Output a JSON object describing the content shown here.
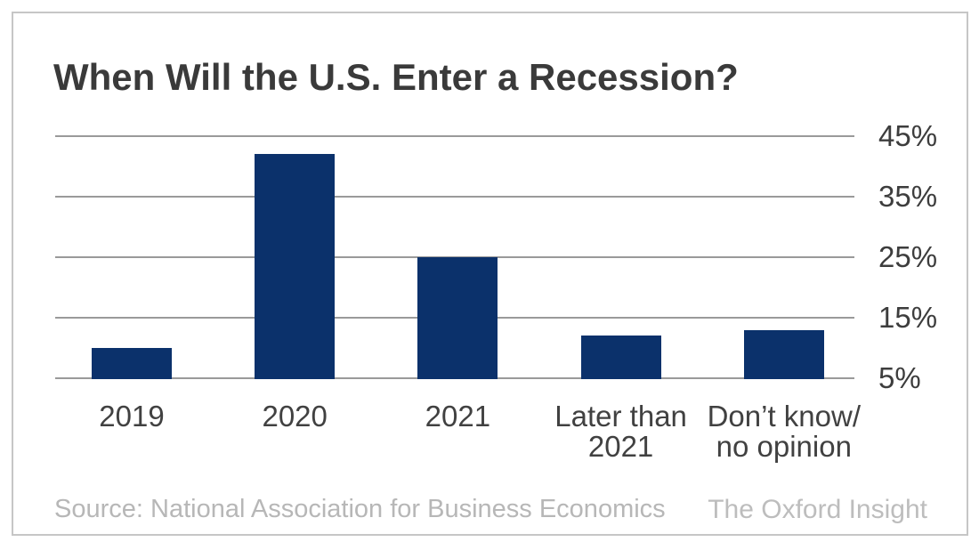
{
  "frame": {
    "border_color": "#c6c6c6",
    "background": "#ffffff"
  },
  "chart_data": {
    "type": "bar",
    "title": "When Will the U.S. Enter a Recession?",
    "categories": [
      "2019",
      "2020",
      "2021",
      "Later than\n2021",
      "Don’t know/\nno opinion"
    ],
    "values": [
      10,
      42,
      25,
      12,
      13
    ],
    "unit": "%",
    "xlabel": "",
    "ylabel": "",
    "y_tick_labels": [
      "45%",
      "35%",
      "25%",
      "15%",
      "5%"
    ],
    "y_ticks": [
      45,
      35,
      25,
      15,
      5
    ],
    "baseline_value": 5,
    "ylim": [
      5,
      47
    ],
    "grid": true,
    "tick_side": "right",
    "legend": "none",
    "bar_color": "#0b316b",
    "gridline_color": "#9a9a9a",
    "title_color": "#3a3a3a",
    "axis_label_color": "#3d3d3d"
  },
  "footer": {
    "source": "Source: National Association for Business Economics",
    "brand": "The Oxford Insight"
  }
}
